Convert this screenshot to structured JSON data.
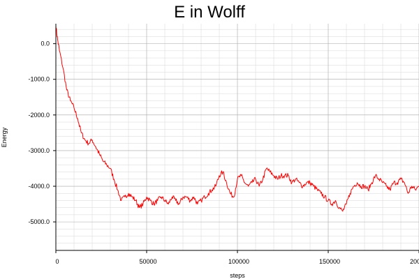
{
  "chart_data": {
    "type": "line",
    "title": "E in Wolff",
    "xlabel": "steps",
    "ylabel": "Energy",
    "xlim": [
      0,
      200000
    ],
    "ylim": [
      -5800,
      560
    ],
    "grid": true,
    "x_ticks": [
      0,
      50000,
      100000,
      150000,
      200000
    ],
    "x_tick_labels": [
      "0",
      "50000",
      "100000",
      "150000",
      "200000"
    ],
    "y_ticks": [
      0,
      -1000,
      -2000,
      -3000,
      -4000,
      -5000
    ],
    "y_tick_labels": [
      "0.0",
      "-1000.0",
      "-2000.0",
      "-3000.0",
      "-4000.0",
      "-5000.0"
    ],
    "series": [
      {
        "color": "#ff0000",
        "x": [
          0,
          1000,
          2000,
          4000,
          6000,
          8000,
          10000,
          12000,
          14000,
          16000,
          18000,
          20000,
          22000,
          24000,
          26000,
          28000,
          30000,
          32000,
          34000,
          36000,
          38000,
          40000,
          42000,
          44000,
          46000,
          48000,
          50000,
          52000,
          54000,
          56000,
          58000,
          60000,
          62000,
          64000,
          66000,
          68000,
          70000,
          72000,
          74000,
          76000,
          78000,
          80000,
          82000,
          84000,
          86000,
          88000,
          90000,
          92000,
          94000,
          96000,
          98000,
          100000,
          102000,
          104000,
          106000,
          108000,
          110000,
          112000,
          114000,
          116000,
          118000,
          120000,
          122000,
          124000,
          126000,
          128000,
          130000,
          132000,
          134000,
          136000,
          138000,
          140000,
          142000,
          144000,
          146000,
          148000,
          150000,
          152000,
          154000,
          156000,
          158000,
          160000,
          162000,
          164000,
          166000,
          168000,
          170000,
          172000,
          174000,
          176000,
          178000,
          180000,
          182000,
          184000,
          186000,
          188000,
          190000,
          192000,
          194000,
          196000,
          198000,
          200000
        ],
        "y": [
          500,
          100,
          -200,
          -700,
          -1300,
          -1600,
          -1800,
          -2100,
          -2500,
          -2700,
          -2800,
          -2700,
          -2900,
          -3100,
          -3300,
          -3400,
          -3500,
          -3800,
          -4100,
          -4400,
          -4300,
          -4200,
          -4300,
          -4400,
          -4600,
          -4500,
          -4300,
          -4400,
          -4500,
          -4400,
          -4300,
          -4400,
          -4500,
          -4300,
          -4400,
          -4500,
          -4300,
          -4300,
          -4400,
          -4300,
          -4500,
          -4400,
          -4300,
          -4200,
          -4100,
          -4000,
          -3700,
          -3600,
          -3900,
          -4200,
          -4300,
          -3800,
          -3700,
          -3900,
          -4000,
          -3900,
          -3800,
          -4000,
          -3800,
          -3500,
          -3600,
          -3700,
          -3800,
          -3700,
          -3700,
          -3700,
          -3900,
          -3800,
          -3900,
          -4000,
          -3900,
          -3900,
          -4000,
          -4100,
          -4200,
          -4300,
          -4400,
          -4500,
          -4400,
          -4600,
          -4700,
          -4500,
          -4200,
          -4000,
          -3900,
          -4000,
          -4000,
          -4100,
          -3900,
          -3700,
          -3800,
          -3900,
          -4000,
          -4100,
          -3900,
          -3900,
          -3800,
          -3900,
          -4200,
          -4000,
          -4100,
          -4000
        ]
      }
    ]
  }
}
